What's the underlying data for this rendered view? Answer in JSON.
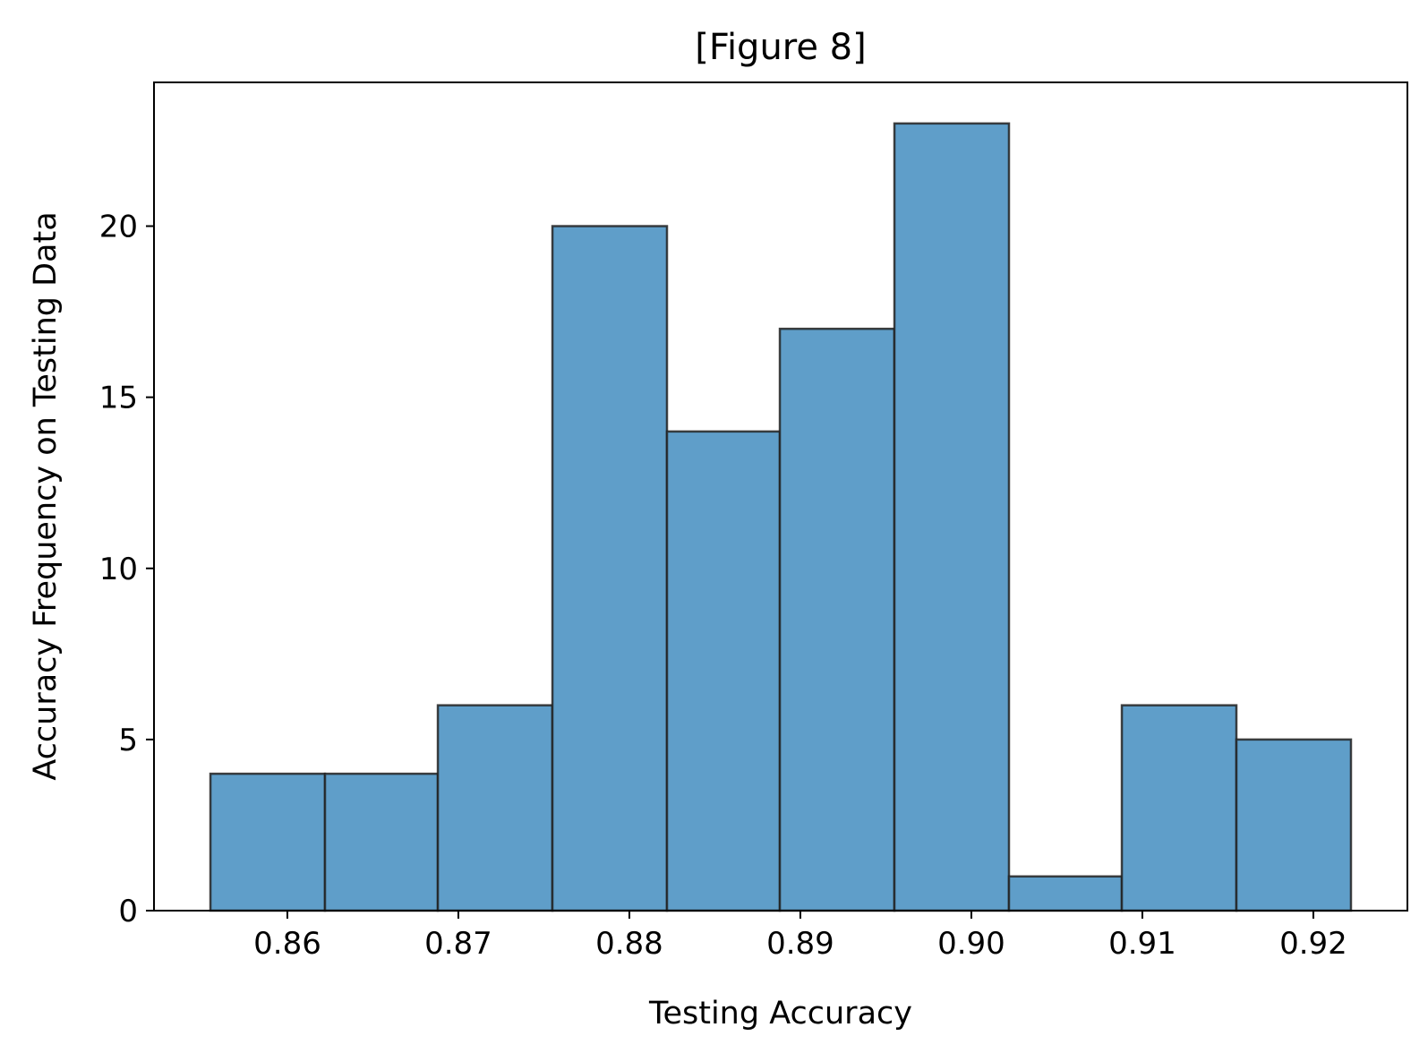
{
  "chart_data": {
    "type": "bar",
    "title": "[Figure 8]",
    "xlabel": "Testing Accuracy",
    "ylabel": "Accuracy Frequency on Testing Data",
    "bin_edges": [
      0.8555,
      0.8622,
      0.8688,
      0.8755,
      0.8822,
      0.8888,
      0.8955,
      0.9022,
      0.9088,
      0.9155,
      0.9222
    ],
    "values": [
      4,
      4,
      6,
      20,
      14,
      17,
      23,
      1,
      6,
      5
    ],
    "xlim": [
      0.8522,
      0.9255
    ],
    "ylim": [
      0,
      24.2
    ],
    "x_ticks": [
      0.86,
      0.87,
      0.88,
      0.89,
      0.9,
      0.91,
      0.92
    ],
    "x_tick_labels": [
      "0.86",
      "0.87",
      "0.88",
      "0.89",
      "0.90",
      "0.91",
      "0.92"
    ],
    "y_ticks": [
      0,
      5,
      10,
      15,
      20
    ],
    "y_tick_labels": [
      "0",
      "5",
      "10",
      "15",
      "20"
    ],
    "bar_color": "#5f9ec9",
    "edge_color": "#222222",
    "grid": false,
    "legend": "none"
  }
}
